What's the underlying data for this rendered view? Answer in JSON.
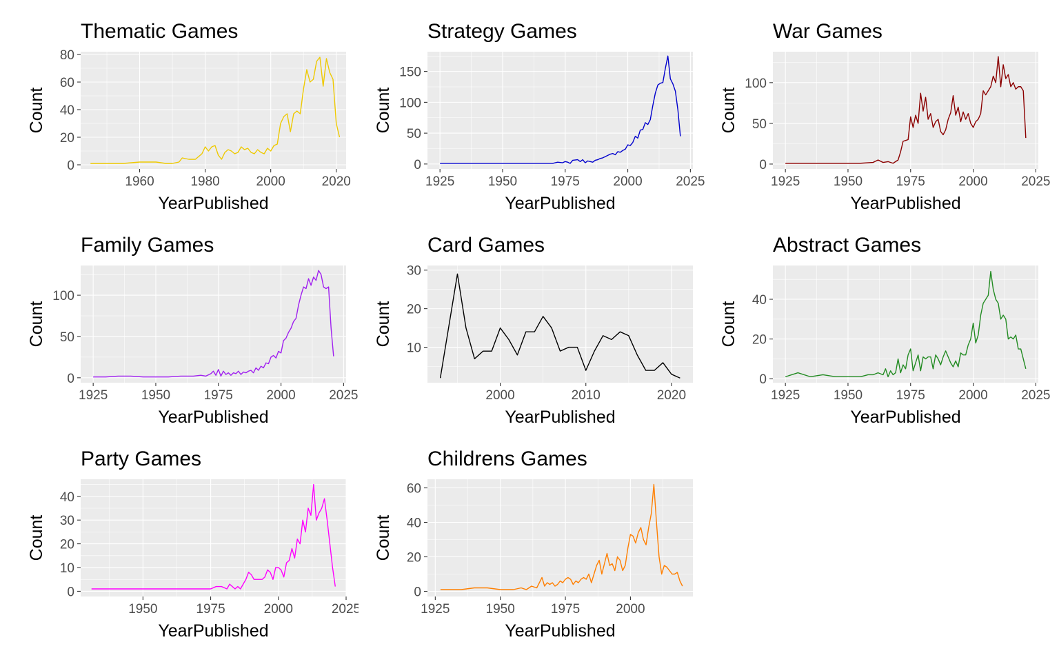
{
  "chart_data": [
    {
      "type": "line",
      "title": "Thematic Games",
      "xlabel": "YearPublished",
      "ylabel": "Count",
      "color": "#EEC900",
      "xlim": [
        1942,
        2023
      ],
      "ylim": [
        -3,
        82
      ],
      "xticks": [
        1960,
        1980,
        2000,
        2020
      ],
      "yticks": [
        0,
        20,
        40,
        60,
        80
      ],
      "x": [
        1945,
        1950,
        1955,
        1960,
        1965,
        1968,
        1970,
        1972,
        1973,
        1975,
        1977,
        1979,
        1980,
        1981,
        1982,
        1983,
        1984,
        1985,
        1986,
        1987,
        1988,
        1989,
        1990,
        1991,
        1992,
        1993,
        1994,
        1995,
        1996,
        1997,
        1998,
        1999,
        2000,
        2001,
        2002,
        2003,
        2004,
        2005,
        2006,
        2007,
        2008,
        2009,
        2010,
        2011,
        2012,
        2013,
        2014,
        2015,
        2016,
        2017,
        2018,
        2019,
        2020,
        2021
      ],
      "y": [
        1,
        1,
        1,
        2,
        2,
        1,
        1,
        2,
        5,
        4,
        4,
        8,
        13,
        10,
        13,
        14,
        7,
        4,
        9,
        11,
        10,
        8,
        9,
        13,
        11,
        12,
        9,
        8,
        11,
        9,
        8,
        12,
        10,
        14,
        15,
        30,
        35,
        37,
        24,
        37,
        39,
        37,
        55,
        69,
        60,
        62,
        75,
        78,
        57,
        77,
        67,
        62,
        30,
        20
      ]
    },
    {
      "type": "line",
      "title": "Strategy Games",
      "xlabel": "YearPublished",
      "ylabel": "Count",
      "color": "#0000CD",
      "xlim": [
        1920,
        2026
      ],
      "ylim": [
        -8,
        182
      ],
      "xticks": [
        1925,
        1950,
        1975,
        2000,
        2025
      ],
      "yticks": [
        0,
        50,
        100,
        150
      ],
      "x": [
        1925,
        1930,
        1940,
        1950,
        1960,
        1970,
        1972,
        1974,
        1975,
        1976,
        1977,
        1978,
        1980,
        1981,
        1982,
        1983,
        1984,
        1985,
        1986,
        1987,
        1988,
        1989,
        1990,
        1991,
        1992,
        1993,
        1994,
        1995,
        1996,
        1997,
        1998,
        1999,
        2000,
        2001,
        2002,
        2003,
        2004,
        2005,
        2006,
        2007,
        2008,
        2009,
        2010,
        2011,
        2012,
        2013,
        2014,
        2015,
        2016,
        2017,
        2018,
        2019,
        2020,
        2021
      ],
      "y": [
        1,
        1,
        1,
        1,
        1,
        1,
        3,
        2,
        4,
        3,
        1,
        6,
        7,
        4,
        7,
        2,
        5,
        4,
        3,
        6,
        7,
        9,
        10,
        12,
        14,
        16,
        17,
        15,
        20,
        19,
        22,
        24,
        31,
        30,
        35,
        45,
        42,
        55,
        56,
        67,
        64,
        72,
        95,
        115,
        128,
        131,
        132,
        155,
        175,
        138,
        130,
        118,
        88,
        45
      ]
    },
    {
      "type": "line",
      "title": "War Games",
      "xlabel": "YearPublished",
      "ylabel": "Count",
      "color": "#8B0000",
      "xlim": [
        1920,
        2026
      ],
      "ylim": [
        -6,
        138
      ],
      "xticks": [
        1925,
        1950,
        1975,
        2000,
        2025
      ],
      "yticks": [
        0,
        50,
        100
      ],
      "x": [
        1925,
        1930,
        1940,
        1950,
        1955,
        1960,
        1962,
        1964,
        1966,
        1968,
        1970,
        1971,
        1972,
        1973,
        1974,
        1975,
        1976,
        1977,
        1978,
        1979,
        1980,
        1981,
        1982,
        1983,
        1984,
        1985,
        1986,
        1987,
        1988,
        1989,
        1990,
        1991,
        1992,
        1993,
        1994,
        1995,
        1996,
        1997,
        1998,
        1999,
        2000,
        2001,
        2002,
        2003,
        2004,
        2005,
        2006,
        2007,
        2008,
        2009,
        2010,
        2011,
        2012,
        2013,
        2014,
        2015,
        2016,
        2017,
        2018,
        2019,
        2020,
        2021
      ],
      "y": [
        1,
        1,
        1,
        1,
        1,
        2,
        5,
        2,
        3,
        1,
        5,
        15,
        28,
        29,
        30,
        58,
        45,
        60,
        50,
        87,
        65,
        82,
        55,
        62,
        45,
        52,
        55,
        40,
        36,
        42,
        55,
        63,
        84,
        60,
        70,
        52,
        64,
        55,
        62,
        50,
        45,
        52,
        55,
        62,
        90,
        85,
        90,
        95,
        108,
        100,
        132,
        95,
        122,
        105,
        110,
        95,
        100,
        92,
        95,
        95,
        90,
        32
      ]
    },
    {
      "type": "line",
      "title": "Family Games",
      "xlabel": "YearPublished",
      "ylabel": "Count",
      "color": "#A020F0",
      "xlim": [
        1920,
        2026
      ],
      "ylim": [
        -6,
        136
      ],
      "xticks": [
        1925,
        1950,
        1975,
        2000,
        2025
      ],
      "yticks": [
        0,
        50,
        100
      ],
      "x": [
        1925,
        1930,
        1935,
        1940,
        1945,
        1950,
        1955,
        1960,
        1965,
        1968,
        1970,
        1972,
        1973,
        1974,
        1975,
        1976,
        1977,
        1978,
        1979,
        1980,
        1981,
        1982,
        1983,
        1984,
        1985,
        1986,
        1987,
        1988,
        1989,
        1990,
        1991,
        1992,
        1993,
        1994,
        1995,
        1996,
        1997,
        1998,
        1999,
        2000,
        2001,
        2002,
        2003,
        2004,
        2005,
        2006,
        2007,
        2008,
        2009,
        2010,
        2011,
        2012,
        2013,
        2014,
        2015,
        2016,
        2017,
        2018,
        2019,
        2020,
        2021
      ],
      "y": [
        1,
        1,
        2,
        2,
        1,
        1,
        1,
        2,
        2,
        3,
        2,
        5,
        8,
        3,
        10,
        2,
        8,
        4,
        6,
        3,
        6,
        5,
        8,
        4,
        7,
        6,
        8,
        9,
        6,
        12,
        9,
        14,
        12,
        18,
        17,
        25,
        27,
        24,
        32,
        30,
        45,
        48,
        55,
        60,
        68,
        72,
        88,
        100,
        110,
        108,
        120,
        112,
        122,
        118,
        130,
        125,
        110,
        108,
        110,
        60,
        26
      ]
    },
    {
      "type": "line",
      "title": "Card Games",
      "xlabel": "YearPublished",
      "ylabel": "Count",
      "color": "#000000",
      "xlim": [
        1991.5,
        2022.5
      ],
      "ylim": [
        0.8,
        31.2
      ],
      "xticks": [
        2000,
        2010,
        2020
      ],
      "yticks": [
        10,
        20,
        30
      ],
      "x": [
        1993,
        1995,
        1996,
        1997,
        1998,
        1999,
        2000,
        2001,
        2002,
        2003,
        2004,
        2005,
        2006,
        2007,
        2008,
        2009,
        2010,
        2011,
        2012,
        2013,
        2014,
        2015,
        2016,
        2017,
        2018,
        2019,
        2020,
        2021
      ],
      "y": [
        2,
        29,
        15,
        7,
        9,
        9,
        15,
        12,
        8,
        14,
        14,
        18,
        15,
        9,
        10,
        10,
        4,
        9,
        13,
        12,
        14,
        13,
        8,
        4,
        4,
        6,
        3,
        2
      ]
    },
    {
      "type": "line",
      "title": "Abstract Games",
      "xlabel": "YearPublished",
      "ylabel": "Count",
      "color": "#228B22",
      "xlim": [
        1920,
        2026
      ],
      "ylim": [
        -2,
        57
      ],
      "xticks": [
        1925,
        1950,
        1975,
        2000,
        2025
      ],
      "yticks": [
        0,
        20,
        40
      ],
      "x": [
        1925,
        1930,
        1935,
        1940,
        1945,
        1950,
        1955,
        1958,
        1960,
        1962,
        1964,
        1965,
        1966,
        1967,
        1968,
        1969,
        1970,
        1971,
        1972,
        1973,
        1974,
        1975,
        1976,
        1977,
        1978,
        1979,
        1980,
        1981,
        1982,
        1983,
        1984,
        1985,
        1986,
        1987,
        1988,
        1989,
        1990,
        1991,
        1992,
        1993,
        1994,
        1995,
        1996,
        1997,
        1998,
        1999,
        2000,
        2001,
        2002,
        2003,
        2004,
        2005,
        2006,
        2007,
        2008,
        2009,
        2010,
        2011,
        2012,
        2013,
        2014,
        2015,
        2016,
        2017,
        2018,
        2019,
        2020,
        2021
      ],
      "y": [
        1,
        3,
        1,
        2,
        1,
        1,
        1,
        2,
        2,
        3,
        2,
        5,
        1,
        4,
        2,
        3,
        10,
        3,
        7,
        5,
        12,
        15,
        4,
        8,
        12,
        4,
        11,
        10,
        11,
        11,
        5,
        12,
        10,
        7,
        11,
        14,
        11,
        8,
        6,
        9,
        6,
        13,
        12,
        12,
        17,
        20,
        28,
        18,
        22,
        32,
        38,
        40,
        42,
        54,
        45,
        40,
        38,
        30,
        32,
        30,
        20,
        21,
        20,
        22,
        15,
        15,
        10,
        5
      ]
    },
    {
      "type": "line",
      "title": "Party Games",
      "xlabel": "YearPublished",
      "ylabel": "Count",
      "color": "#FF00FF",
      "xlim": [
        1927,
        2025
      ],
      "ylim": [
        -2.2,
        47.2
      ],
      "xticks": [
        1950,
        1975,
        2000,
        2025
      ],
      "yticks": [
        0,
        10,
        20,
        30,
        40
      ],
      "x": [
        1931,
        1940,
        1950,
        1960,
        1970,
        1975,
        1977,
        1979,
        1981,
        1982,
        1983,
        1984,
        1985,
        1986,
        1987,
        1988,
        1989,
        1990,
        1991,
        1992,
        1993,
        1994,
        1995,
        1996,
        1997,
        1998,
        1999,
        2000,
        2001,
        2002,
        2003,
        2004,
        2005,
        2006,
        2007,
        2008,
        2009,
        2010,
        2011,
        2012,
        2013,
        2014,
        2015,
        2016,
        2017,
        2018,
        2019,
        2020,
        2021
      ],
      "y": [
        1,
        1,
        1,
        1,
        1,
        1,
        2,
        2,
        1,
        3,
        2,
        1,
        2,
        1,
        3,
        5,
        8,
        7,
        5,
        5,
        5,
        5,
        6,
        9,
        8,
        5,
        10,
        10,
        9,
        6,
        12,
        13,
        18,
        14,
        22,
        20,
        30,
        25,
        35,
        32,
        45,
        30,
        33,
        35,
        39,
        30,
        20,
        10,
        2
      ]
    },
    {
      "type": "line",
      "title": "Childrens Games",
      "xlabel": "YearPublished",
      "ylabel": "Count",
      "color": "#FF7F00",
      "xlim": [
        1922,
        2024
      ],
      "ylim": [
        -3,
        65
      ],
      "xticks": [
        1925,
        1950,
        1975,
        2000
      ],
      "yticks": [
        0,
        20,
        40,
        60
      ],
      "x": [
        1927,
        1930,
        1935,
        1940,
        1945,
        1950,
        1955,
        1958,
        1960,
        1962,
        1964,
        1965,
        1966,
        1967,
        1968,
        1969,
        1970,
        1971,
        1972,
        1973,
        1974,
        1975,
        1976,
        1977,
        1978,
        1979,
        1980,
        1981,
        1982,
        1983,
        1984,
        1985,
        1986,
        1987,
        1988,
        1989,
        1990,
        1991,
        1992,
        1993,
        1994,
        1995,
        1996,
        1997,
        1998,
        1999,
        2000,
        2001,
        2002,
        2003,
        2004,
        2005,
        2006,
        2007,
        2008,
        2009,
        2010,
        2011,
        2012,
        2013,
        2014,
        2015,
        2016,
        2017,
        2018,
        2019,
        2020
      ],
      "y": [
        1,
        1,
        1,
        2,
        2,
        1,
        1,
        2,
        1,
        3,
        2,
        5,
        8,
        3,
        5,
        4,
        5,
        3,
        4,
        6,
        5,
        7,
        8,
        7,
        4,
        6,
        5,
        7,
        8,
        7,
        10,
        5,
        10,
        15,
        18,
        10,
        16,
        22,
        15,
        16,
        12,
        20,
        18,
        12,
        15,
        25,
        33,
        32,
        28,
        34,
        37,
        30,
        27,
        37,
        45,
        62,
        40,
        20,
        10,
        15,
        14,
        12,
        10,
        10,
        11,
        6,
        3
      ]
    }
  ]
}
